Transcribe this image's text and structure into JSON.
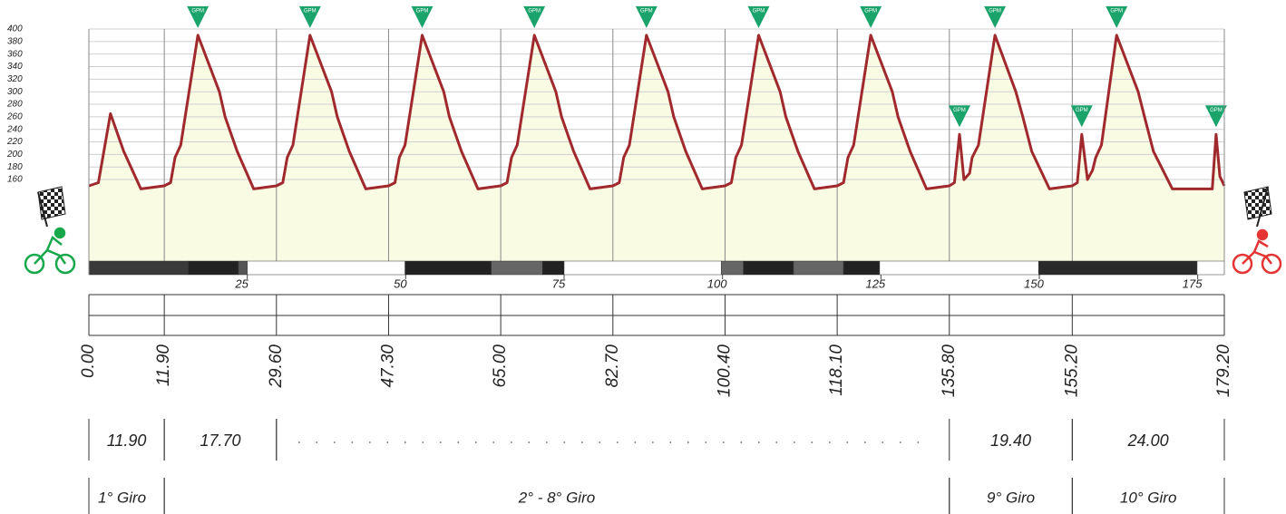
{
  "chart_data": {
    "type": "line",
    "xlim": [
      0,
      179.2
    ],
    "ylim": [
      30,
      400
    ],
    "yticks": [
      160,
      180,
      200,
      220,
      240,
      260,
      280,
      300,
      320,
      340,
      360,
      380,
      400
    ],
    "xticks": [
      25,
      50,
      75,
      100,
      125,
      150,
      175
    ],
    "grid": true,
    "series": [
      {
        "color": "#a0292e",
        "fill": "#fafbe3",
        "x": [
          0,
          1.5,
          3.4,
          5.5,
          8.2,
          11.9,
          12.9,
          13.6,
          14.5,
          17.2,
          20.6,
          21.5,
          23.4,
          26.0,
          29.6,
          30.6,
          31.3,
          32.2,
          34.9,
          38.3,
          39.2,
          41.1,
          43.7,
          47.3,
          48.3,
          49.0,
          49.9,
          52.6,
          56.0,
          56.9,
          58.8,
          61.4,
          65.0,
          66.0,
          66.7,
          67.6,
          70.3,
          73.7,
          74.6,
          76.5,
          79.1,
          82.7,
          83.7,
          84.4,
          85.3,
          88.0,
          91.4,
          92.3,
          94.2,
          96.8,
          100.4,
          101.4,
          102.1,
          103.0,
          105.7,
          109.1,
          110.0,
          111.9,
          114.5,
          118.1,
          119.1,
          119.8,
          120.7,
          123.4,
          126.8,
          127.7,
          129.6,
          132.2,
          135.8,
          136.6,
          137.4,
          138.1,
          139.0,
          139.4,
          140.4,
          143.0,
          146.3,
          147.4,
          148.8,
          151.6,
          155.2,
          156.0,
          156.7,
          157.6,
          158.4,
          158.9,
          159.8,
          162.2,
          165.6,
          166.6,
          168.0,
          171.0,
          177.3,
          177.9,
          178.5,
          179.2
        ],
        "values": [
          150,
          155,
          265,
          205,
          145,
          150,
          155,
          195,
          215,
          390,
          300,
          260,
          205,
          145,
          150,
          155,
          195,
          215,
          390,
          300,
          260,
          205,
          145,
          150,
          155,
          195,
          215,
          390,
          300,
          260,
          205,
          145,
          150,
          155,
          195,
          215,
          390,
          300,
          260,
          205,
          145,
          150,
          155,
          195,
          215,
          390,
          300,
          260,
          205,
          145,
          150,
          155,
          195,
          215,
          390,
          300,
          260,
          205,
          145,
          150,
          155,
          195,
          215,
          390,
          300,
          260,
          205,
          145,
          150,
          155,
          232,
          160,
          170,
          195,
          215,
          390,
          300,
          260,
          205,
          145,
          150,
          155,
          232,
          160,
          175,
          195,
          215,
          390,
          300,
          260,
          205,
          145,
          145,
          232,
          165,
          150
        ]
      }
    ],
    "marker_color": "#1aa36b",
    "markers": [
      {
        "x": 17.2,
        "y": 390,
        "label": "GPM"
      },
      {
        "x": 34.9,
        "y": 390,
        "label": "GPM"
      },
      {
        "x": 52.6,
        "y": 390,
        "label": "GPM"
      },
      {
        "x": 70.3,
        "y": 390,
        "label": "GPM"
      },
      {
        "x": 88.0,
        "y": 390,
        "label": "GPM"
      },
      {
        "x": 105.7,
        "y": 390,
        "label": "GPM"
      },
      {
        "x": 123.4,
        "y": 390,
        "label": "GPM"
      },
      {
        "x": 137.4,
        "y": 232,
        "label": "GPM"
      },
      {
        "x": 143.0,
        "y": 390,
        "label": "GPM"
      },
      {
        "x": 156.7,
        "y": 232,
        "label": "GPM"
      },
      {
        "x": 162.2,
        "y": 390,
        "label": "GPM"
      },
      {
        "x": 177.9,
        "y": 232,
        "label": "GPM"
      }
    ],
    "strip": [
      {
        "from": 0,
        "to": 15.7,
        "color": "#3a3a3a"
      },
      {
        "from": 15.7,
        "to": 23.6,
        "color": "#222222"
      },
      {
        "from": 23.6,
        "to": 25.0,
        "color": "#555555"
      },
      {
        "from": 25.0,
        "to": 49.9,
        "color": "#ffffff"
      },
      {
        "from": 49.9,
        "to": 63.5,
        "color": "#222222"
      },
      {
        "from": 63.5,
        "to": 71.6,
        "color": "#666666"
      },
      {
        "from": 71.6,
        "to": 75.0,
        "color": "#222222"
      },
      {
        "from": 75.0,
        "to": 99.8,
        "color": "#ffffff"
      },
      {
        "from": 99.8,
        "to": 103.3,
        "color": "#666666"
      },
      {
        "from": 103.3,
        "to": 111.2,
        "color": "#222222"
      },
      {
        "from": 111.2,
        "to": 119.1,
        "color": "#666666"
      },
      {
        "from": 119.1,
        "to": 124.8,
        "color": "#222222"
      },
      {
        "from": 124.8,
        "to": 149.9,
        "color": "#ffffff"
      },
      {
        "from": 149.9,
        "to": 174.9,
        "color": "#2a2a2a"
      },
      {
        "from": 174.9,
        "to": 179.2,
        "color": "#ffffff"
      }
    ],
    "lap_marks": [
      {
        "value": 0,
        "label": "0.00"
      },
      {
        "value": 11.9,
        "label": "11.90"
      },
      {
        "value": 29.6,
        "label": "29.60"
      },
      {
        "value": 47.3,
        "label": "47.30"
      },
      {
        "value": 65.0,
        "label": "65.00"
      },
      {
        "value": 82.7,
        "label": "82.70"
      },
      {
        "value": 100.4,
        "label": "100.40"
      },
      {
        "value": 118.1,
        "label": "118.10"
      },
      {
        "value": 135.8,
        "label": "135.80"
      },
      {
        "value": 155.2,
        "label": "155.20"
      },
      {
        "value": 179.2,
        "label": "179.20"
      }
    ],
    "lap_lengths": [
      {
        "value": 11.9,
        "label": "11.90"
      },
      {
        "value": 17.7,
        "label": "17.70"
      },
      null,
      {
        "value": 19.4,
        "label": "19.40"
      },
      {
        "value": 24.0,
        "label": "24.00"
      }
    ],
    "laps": [
      "1° Giro",
      "2° - 8° Giro",
      "9° Giro",
      "10° Giro"
    ]
  }
}
